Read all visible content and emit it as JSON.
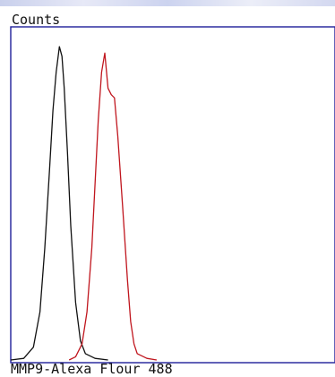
{
  "chart_data": {
    "type": "line",
    "ylabel": "Counts",
    "xlabel": "MMP9-Alexa Flour 488",
    "xlim": [
      0,
      1
    ],
    "ylim": [
      0,
      1
    ],
    "grid": false,
    "series": [
      {
        "color": "#111111",
        "x": [
          0.0,
          0.04,
          0.07,
          0.09,
          0.105,
          0.12,
          0.13,
          0.14,
          0.15,
          0.158,
          0.165,
          0.175,
          0.185,
          0.2,
          0.215,
          0.23,
          0.26,
          0.3
        ],
        "values": [
          0.0,
          0.005,
          0.04,
          0.15,
          0.35,
          0.6,
          0.78,
          0.9,
          0.98,
          0.95,
          0.85,
          0.65,
          0.42,
          0.18,
          0.06,
          0.02,
          0.005,
          0.0
        ]
      },
      {
        "color": "#c0161e",
        "x": [
          0.18,
          0.2,
          0.22,
          0.235,
          0.25,
          0.26,
          0.27,
          0.28,
          0.29,
          0.3,
          0.31,
          0.32,
          0.33,
          0.345,
          0.36,
          0.37,
          0.38,
          0.39,
          0.42,
          0.45
        ],
        "values": [
          0.0,
          0.01,
          0.05,
          0.15,
          0.35,
          0.55,
          0.75,
          0.9,
          0.96,
          0.85,
          0.83,
          0.82,
          0.7,
          0.48,
          0.25,
          0.12,
          0.05,
          0.02,
          0.005,
          0.0
        ]
      }
    ]
  }
}
